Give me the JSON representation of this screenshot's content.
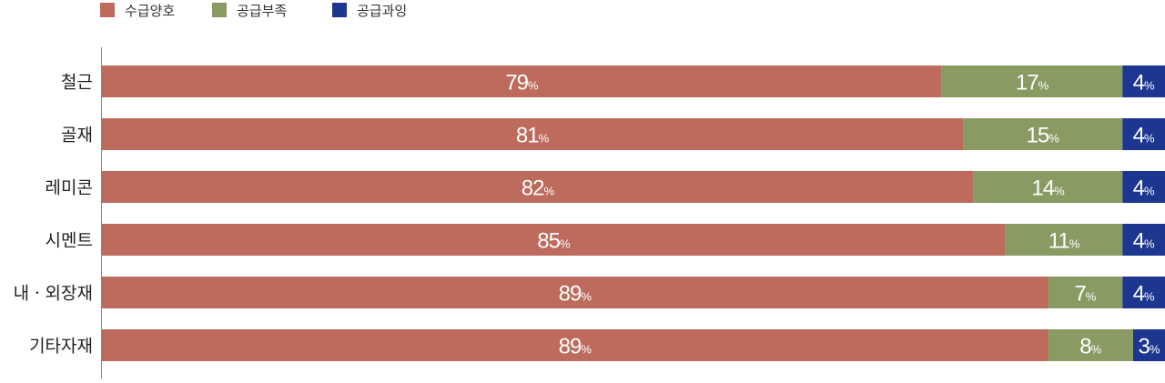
{
  "chart_data": {
    "type": "bar",
    "orientation": "horizontal",
    "stacked": true,
    "categories": [
      "철근",
      "골재",
      "레미콘",
      "시멘트",
      "내ㆍ외장재",
      "기타자재"
    ],
    "series": [
      {
        "name": "수급양호",
        "color": "#bc6b5c",
        "values": [
          79,
          81,
          82,
          85,
          89,
          89
        ]
      },
      {
        "name": "공급부족",
        "color": "#8a9a63",
        "values": [
          17,
          15,
          14,
          11,
          7,
          8
        ]
      },
      {
        "name": "공급과잉",
        "color": "#1d3690",
        "values": [
          4,
          4,
          4,
          4,
          4,
          3
        ]
      }
    ],
    "value_suffix": "%",
    "xlim": [
      0,
      100
    ],
    "grid": false,
    "legend_position": "top-left"
  }
}
